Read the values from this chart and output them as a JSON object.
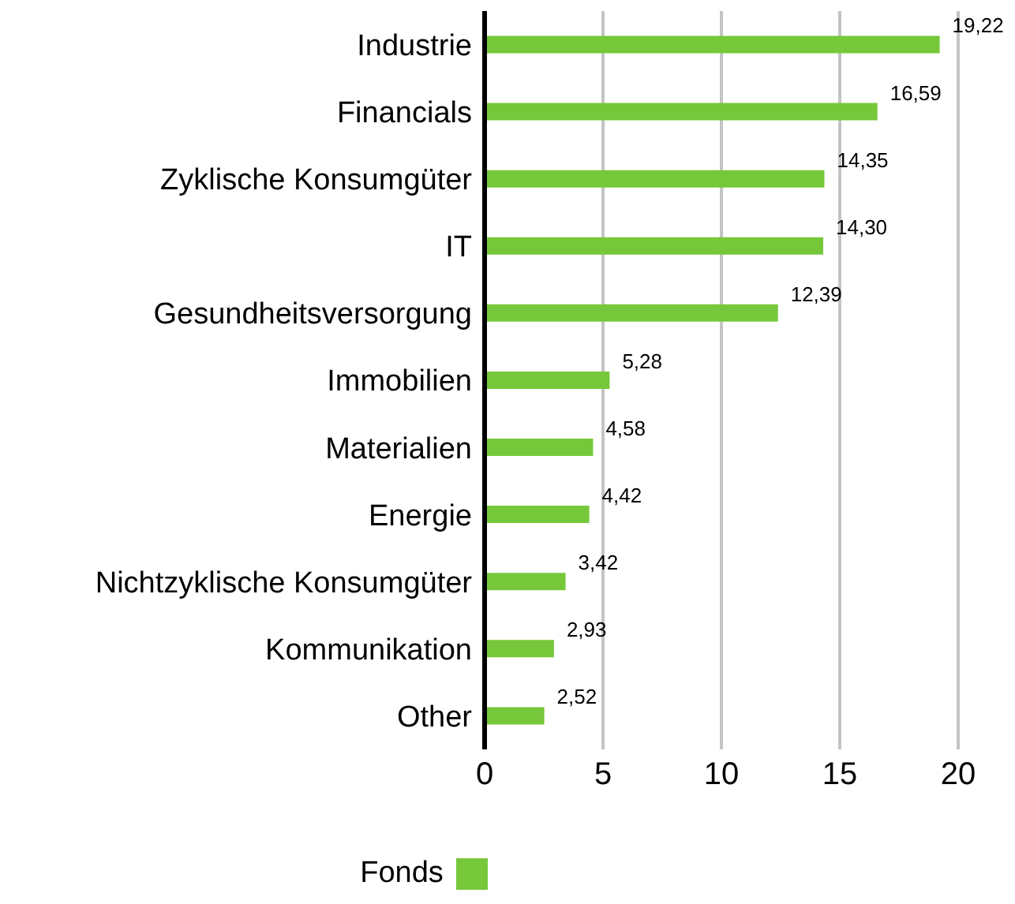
{
  "chart_data": {
    "type": "bar",
    "orientation": "horizontal",
    "categories": [
      "Industrie",
      "Financials",
      "Zyklische Konsumgüter",
      "IT",
      "Gesundheitsversorgung",
      "Immobilien",
      "Materialien",
      "Energie",
      "Nichtzyklische Konsumgüter",
      "Kommunikation",
      "Other"
    ],
    "series": [
      {
        "name": "Fonds",
        "color": "#76c83a",
        "values": [
          19.22,
          16.59,
          14.35,
          14.3,
          12.39,
          5.28,
          4.58,
          4.42,
          3.42,
          2.93,
          2.52
        ],
        "value_labels": [
          "19,22",
          "16,59",
          "14,35",
          "14,30",
          "12,39",
          "5,28",
          "4,58",
          "4,42",
          "3,42",
          "2,93",
          "2,52"
        ]
      }
    ],
    "xlim": [
      0,
      20
    ],
    "xticks": [
      0,
      5,
      10,
      15,
      20
    ],
    "grid": "x",
    "legend": "bottom"
  }
}
